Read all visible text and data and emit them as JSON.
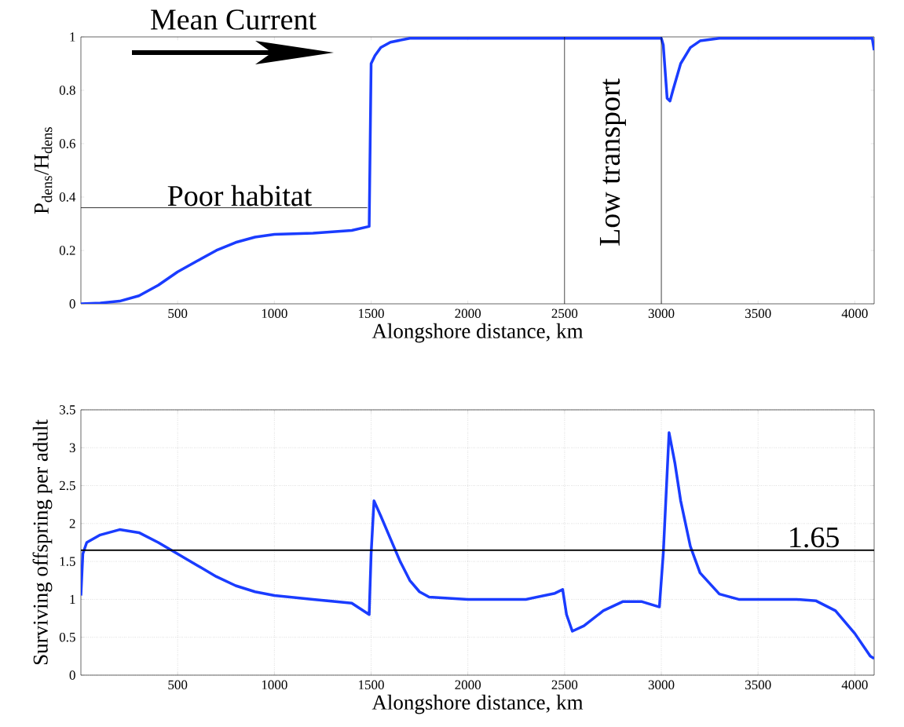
{
  "chart_data": [
    {
      "type": "line",
      "xlabel": "Alongshore distance, km",
      "ylabel": "P$_{dens}$/H$_{dens}$",
      "line_style": "solid",
      "grid": false,
      "annotations": [
        "Mean Current",
        {
          "text": "Poor habitat",
          "x": 820,
          "y": 0.36
        },
        "Low transport"
      ],
      "series": [
        {
          "color": "#1a3cff",
          "x": [
            0,
            100,
            200,
            300,
            400,
            500,
            600,
            700,
            800,
            900,
            1000,
            1200,
            1400,
            1490,
            1500,
            1520,
            1550,
            1600,
            1700,
            2500,
            3000,
            3010,
            3030,
            3045,
            3060,
            3100,
            3150,
            3200,
            3300,
            4090,
            4100
          ],
          "values": [
            0,
            0.003,
            0.01,
            0.03,
            0.07,
            0.12,
            0.16,
            0.2,
            0.23,
            0.25,
            0.26,
            0.265,
            0.275,
            0.29,
            0.9,
            0.93,
            0.96,
            0.98,
            0.995,
            0.995,
            0.995,
            0.97,
            0.77,
            0.76,
            0.8,
            0.9,
            0.96,
            0.985,
            0.995,
            0.995,
            0.95
          ]
        },
        {
          "color": "#000000",
          "x": [
            0,
            1480
          ],
          "values": [
            0.36,
            0.36
          ]
        }
      ],
      "xlim": [
        0,
        4100
      ],
      "ylim": [
        0,
        1
      ],
      "xticks": [
        500,
        1000,
        1500,
        2000,
        2500,
        3000,
        3500,
        4000
      ],
      "yticks": [
        0,
        0.2,
        0.4,
        0.6,
        0.8,
        1
      ],
      "ref_lines": [
        {
          "axis": "x",
          "value": 2500,
          "color": "#000000"
        },
        {
          "axis": "x",
          "value": 3000,
          "color": "#000000"
        }
      ]
    },
    {
      "type": "line",
      "xlabel": "Alongshore distance, km",
      "ylabel": "Surviving offspring per adult",
      "line_style": "solid",
      "grid": true,
      "series": [
        {
          "color": "#1a3cff",
          "x": [
            0,
            10,
            30,
            100,
            200,
            300,
            400,
            500,
            600,
            700,
            800,
            900,
            1000,
            1200,
            1400,
            1490,
            1500,
            1515,
            1550,
            1600,
            1650,
            1700,
            1750,
            1800,
            2000,
            2300,
            2450,
            2490,
            2510,
            2540,
            2600,
            2700,
            2800,
            2900,
            2990,
            3010,
            3040,
            3070,
            3100,
            3150,
            3200,
            3300,
            3400,
            3700,
            3800,
            3900,
            4000,
            4080,
            4100
          ],
          "values": [
            1.05,
            1.6,
            1.75,
            1.85,
            1.92,
            1.88,
            1.75,
            1.6,
            1.45,
            1.3,
            1.18,
            1.1,
            1.05,
            1.0,
            0.95,
            0.8,
            1.6,
            2.3,
            2.1,
            1.8,
            1.5,
            1.25,
            1.1,
            1.03,
            1.0,
            1.0,
            1.08,
            1.13,
            0.8,
            0.58,
            0.65,
            0.85,
            0.97,
            0.97,
            0.9,
            1.6,
            3.2,
            2.8,
            2.3,
            1.7,
            1.35,
            1.07,
            1.0,
            1.0,
            0.98,
            0.85,
            0.55,
            0.25,
            0.22
          ]
        }
      ],
      "xlim": [
        0,
        4100
      ],
      "ylim": [
        0,
        3.5
      ],
      "xticks": [
        500,
        1000,
        1500,
        2000,
        2500,
        3000,
        3500,
        4000
      ],
      "yticks": [
        0,
        0.5,
        1,
        1.5,
        2,
        2.5,
        3,
        3.5
      ],
      "ref_lines": [
        {
          "axis": "y",
          "value": 1.65,
          "label": "1.65",
          "color": "#000000"
        }
      ]
    }
  ]
}
